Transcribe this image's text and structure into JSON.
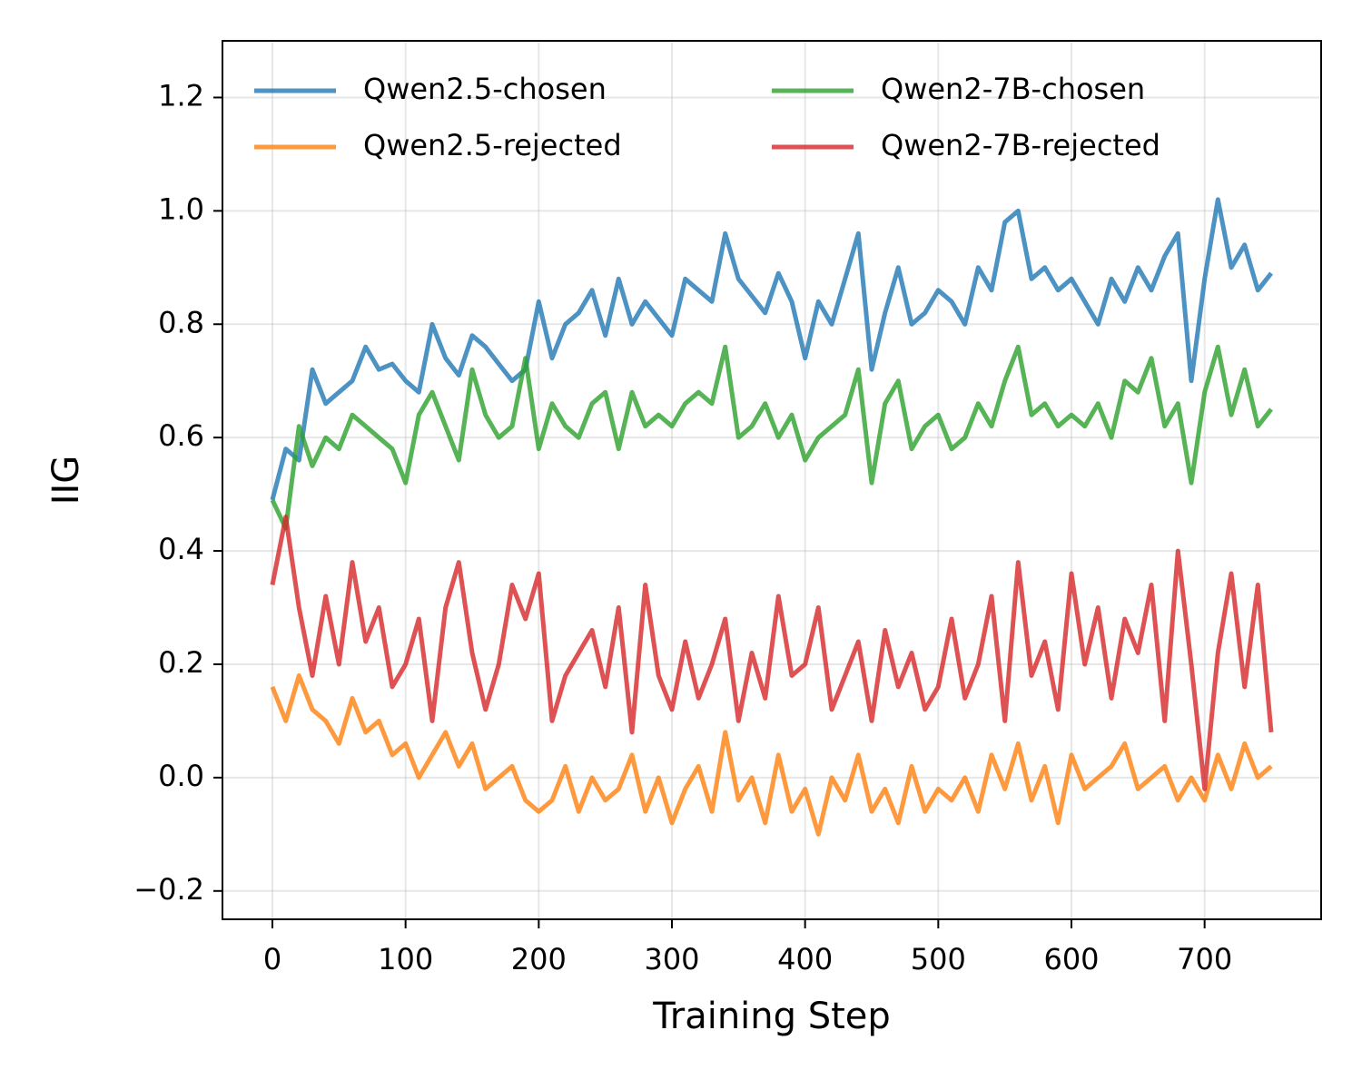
{
  "chart_data": {
    "type": "line",
    "xlabel": "Training Step",
    "ylabel": "IIG",
    "x": [
      0,
      10,
      20,
      30,
      40,
      50,
      60,
      70,
      80,
      90,
      100,
      110,
      120,
      130,
      140,
      150,
      160,
      170,
      180,
      190,
      200,
      210,
      220,
      230,
      240,
      250,
      260,
      270,
      280,
      290,
      300,
      310,
      320,
      330,
      340,
      350,
      360,
      370,
      380,
      390,
      400,
      410,
      420,
      430,
      440,
      450,
      460,
      470,
      480,
      490,
      500,
      510,
      520,
      530,
      540,
      550,
      560,
      570,
      580,
      590,
      600,
      610,
      620,
      630,
      640,
      650,
      660,
      670,
      680,
      690,
      700,
      710,
      720,
      730,
      740,
      750
    ],
    "series": [
      {
        "name": "Qwen2.5-chosen",
        "color": "#1f77b4",
        "values": [
          0.49,
          0.58,
          0.56,
          0.72,
          0.66,
          0.68,
          0.7,
          0.76,
          0.72,
          0.73,
          0.7,
          0.68,
          0.8,
          0.74,
          0.71,
          0.78,
          0.76,
          0.73,
          0.7,
          0.72,
          0.84,
          0.74,
          0.8,
          0.82,
          0.86,
          0.78,
          0.88,
          0.8,
          0.84,
          0.81,
          0.78,
          0.88,
          0.86,
          0.84,
          0.96,
          0.88,
          0.85,
          0.82,
          0.89,
          0.84,
          0.74,
          0.84,
          0.8,
          0.88,
          0.96,
          0.72,
          0.82,
          0.9,
          0.8,
          0.82,
          0.86,
          0.84,
          0.8,
          0.9,
          0.86,
          0.98,
          1.0,
          0.88,
          0.9,
          0.86,
          0.88,
          0.84,
          0.8,
          0.88,
          0.84,
          0.9,
          0.86,
          0.92,
          0.96,
          0.7,
          0.88,
          1.02,
          0.9,
          0.94,
          0.86,
          0.89
        ]
      },
      {
        "name": "Qwen2.5-rejected",
        "color": "#ff7f0e",
        "values": [
          0.16,
          0.1,
          0.18,
          0.12,
          0.1,
          0.06,
          0.14,
          0.08,
          0.1,
          0.04,
          0.06,
          0.0,
          0.04,
          0.08,
          0.02,
          0.06,
          -0.02,
          0.0,
          0.02,
          -0.04,
          -0.06,
          -0.04,
          0.02,
          -0.06,
          0.0,
          -0.04,
          -0.02,
          0.04,
          -0.06,
          0.0,
          -0.08,
          -0.02,
          0.02,
          -0.06,
          0.08,
          -0.04,
          0.0,
          -0.08,
          0.04,
          -0.06,
          -0.02,
          -0.1,
          0.0,
          -0.04,
          0.04,
          -0.06,
          -0.02,
          -0.08,
          0.02,
          -0.06,
          -0.02,
          -0.04,
          0.0,
          -0.06,
          0.04,
          -0.02,
          0.06,
          -0.04,
          0.02,
          -0.08,
          0.04,
          -0.02,
          0.0,
          0.02,
          0.06,
          -0.02,
          0.0,
          0.02,
          -0.04,
          0.0,
          -0.04,
          0.04,
          -0.02,
          0.06,
          0.0,
          0.02
        ]
      },
      {
        "name": "Qwen2-7B-chosen",
        "color": "#2ca02c",
        "values": [
          0.49,
          0.44,
          0.62,
          0.55,
          0.6,
          0.58,
          0.64,
          0.62,
          0.6,
          0.58,
          0.52,
          0.64,
          0.68,
          0.62,
          0.56,
          0.72,
          0.64,
          0.6,
          0.62,
          0.74,
          0.58,
          0.66,
          0.62,
          0.6,
          0.66,
          0.68,
          0.58,
          0.68,
          0.62,
          0.64,
          0.62,
          0.66,
          0.68,
          0.66,
          0.76,
          0.6,
          0.62,
          0.66,
          0.6,
          0.64,
          0.56,
          0.6,
          0.62,
          0.64,
          0.72,
          0.52,
          0.66,
          0.7,
          0.58,
          0.62,
          0.64,
          0.58,
          0.6,
          0.66,
          0.62,
          0.7,
          0.76,
          0.64,
          0.66,
          0.62,
          0.64,
          0.62,
          0.66,
          0.6,
          0.7,
          0.68,
          0.74,
          0.62,
          0.66,
          0.52,
          0.68,
          0.76,
          0.64,
          0.72,
          0.62,
          0.65
        ]
      },
      {
        "name": "Qwen2-7B-rejected",
        "color": "#d62728",
        "values": [
          0.34,
          0.46,
          0.3,
          0.18,
          0.32,
          0.2,
          0.38,
          0.24,
          0.3,
          0.16,
          0.2,
          0.28,
          0.1,
          0.3,
          0.38,
          0.22,
          0.12,
          0.2,
          0.34,
          0.28,
          0.36,
          0.1,
          0.18,
          0.22,
          0.26,
          0.16,
          0.3,
          0.08,
          0.34,
          0.18,
          0.12,
          0.24,
          0.14,
          0.2,
          0.28,
          0.1,
          0.22,
          0.14,
          0.32,
          0.18,
          0.2,
          0.3,
          0.12,
          0.18,
          0.24,
          0.1,
          0.26,
          0.16,
          0.22,
          0.12,
          0.16,
          0.28,
          0.14,
          0.2,
          0.32,
          0.1,
          0.38,
          0.18,
          0.24,
          0.12,
          0.36,
          0.2,
          0.3,
          0.14,
          0.28,
          0.22,
          0.34,
          0.1,
          0.4,
          0.2,
          -0.02,
          0.22,
          0.36,
          0.16,
          0.34,
          0.08
        ]
      }
    ],
    "xlim": [
      -37.5,
      787.5
    ],
    "xticks": [
      0,
      100,
      200,
      300,
      400,
      500,
      600,
      700
    ],
    "ylim": [
      -0.25,
      1.3
    ],
    "yticks": [
      {
        "value": -0.2,
        "label": "−0.2"
      },
      {
        "value": 0,
        "label": "0.0"
      },
      0.2,
      0.4,
      0.6,
      0.8,
      {
        "value": 1,
        "label": "1.0"
      },
      1.2
    ],
    "grid": true,
    "legend": "upper left"
  }
}
